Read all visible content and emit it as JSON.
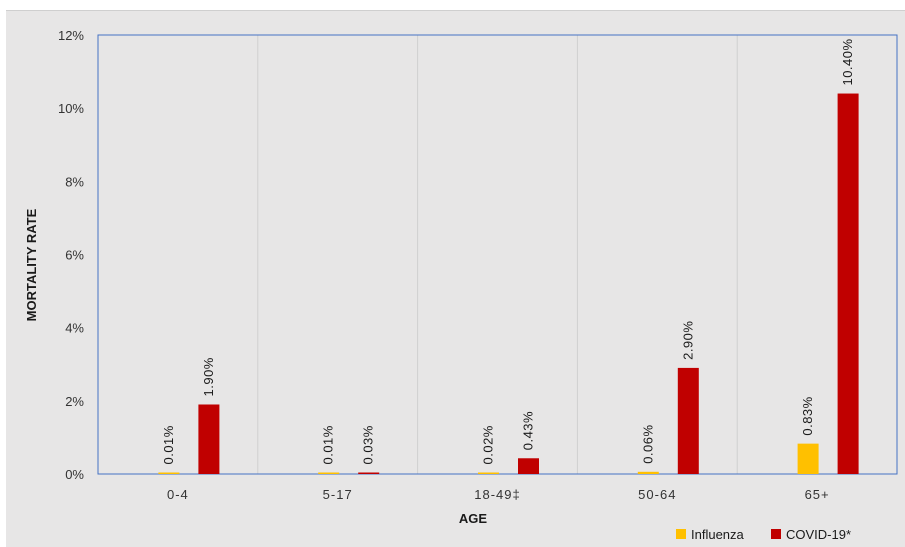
{
  "chart_data": {
    "type": "bar",
    "categories": [
      "0-4",
      "5-17",
      "18-49‡",
      "50-64",
      "65+"
    ],
    "series": [
      {
        "name": "Influenza",
        "values": [
          0.01,
          0.01,
          0.02,
          0.06,
          0.83
        ],
        "labels": [
          "0.01%",
          "0.01%",
          "0.02%",
          "0.06%",
          "0.83%"
        ],
        "color": "#ffc000"
      },
      {
        "name": "COVID-19*",
        "values": [
          1.9,
          0.03,
          0.43,
          2.9,
          10.4
        ],
        "labels": [
          "1.90%",
          "0.03%",
          "0.43%",
          "2.90%",
          "10.40%"
        ],
        "color": "#c00000"
      }
    ],
    "xlabel": "AGE",
    "ylabel": "MORTALITY RATE",
    "ylim": [
      0,
      12
    ],
    "yticks": [
      0,
      2,
      4,
      6,
      8,
      10,
      12
    ],
    "ytick_labels": [
      "0%",
      "2%",
      "4%",
      "6%",
      "8%",
      "10%",
      "12%"
    ],
    "legend_position": "bottom-right",
    "grid": "vertical",
    "colors": {
      "background": "#e7e6e6",
      "plot_border": "#4472c4",
      "gridline": "#d0d0d0"
    }
  }
}
